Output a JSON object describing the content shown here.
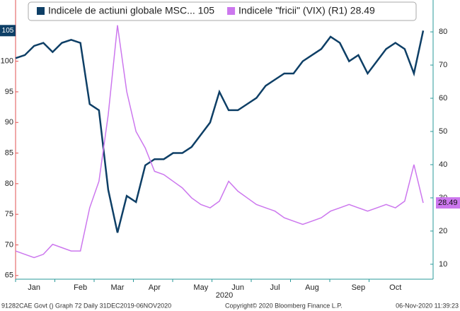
{
  "chart_data": {
    "type": "line",
    "categories": [
      null,
      null,
      "Jan",
      null,
      null,
      null,
      null,
      "Feb",
      null,
      null,
      null,
      "Mar",
      null,
      null,
      null,
      "Apr",
      null,
      null,
      null,
      null,
      "May",
      null,
      null,
      null,
      "Jun",
      null,
      null,
      null,
      "Jul",
      null,
      null,
      null,
      "Aug",
      null,
      null,
      null,
      null,
      "Sep",
      null,
      null,
      null,
      "Oct",
      null,
      null,
      null
    ],
    "x_label": "2020",
    "series": [
      {
        "name": "Indicele de actiuni globale MSC... 105",
        "color": "#0e3f66",
        "last_value_label": "105",
        "values": [
          100.5,
          101,
          102.5,
          103,
          101.5,
          103,
          103.5,
          103,
          93,
          92,
          79,
          72,
          78,
          77,
          83,
          84,
          84,
          85,
          85,
          86,
          88,
          90,
          95,
          92,
          92,
          93,
          94,
          96,
          97,
          98,
          98,
          100,
          101,
          102,
          104,
          103,
          100,
          101,
          98,
          100,
          102,
          103,
          102,
          98,
          105
        ]
      },
      {
        "name": "Indicele \"fricii\" (VIX) (R1) 28.49",
        "color": "#cc77ee",
        "axis": "y2",
        "last_value_label": "28.49",
        "values": [
          14,
          13,
          12,
          13,
          16,
          15,
          14,
          14,
          27,
          35,
          55,
          82,
          62,
          50,
          45,
          38,
          37,
          35,
          33,
          30,
          28,
          27,
          29,
          35,
          32,
          30,
          28,
          27,
          26,
          24,
          23,
          22,
          23,
          24,
          26,
          27,
          28,
          27,
          26,
          27,
          28,
          27,
          29,
          40,
          28.49
        ]
      }
    ],
    "ylim": [
      64.4,
      110
    ],
    "yticks": [
      65,
      70,
      75,
      80,
      85,
      90,
      95,
      100
    ],
    "y2lim": [
      5.5,
      89.6
    ],
    "y2ticks": [
      10,
      20,
      30,
      40,
      50,
      60,
      70,
      80
    ],
    "footer": [
      "91282CAE Govt () Graph 72  Daily 31DEC2019-06NOV2020",
      "Copyright© 2020 Bloomberg Finance L.P.",
      "06-Nov-2020 11:39:23"
    ]
  }
}
